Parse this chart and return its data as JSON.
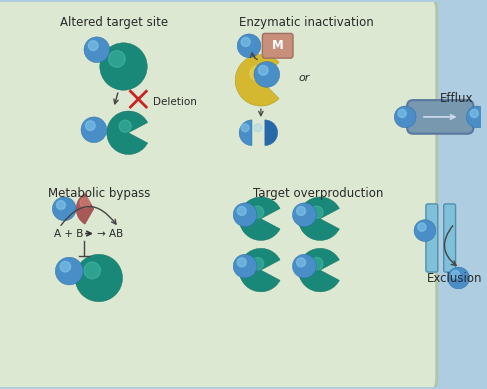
{
  "bg_color": "#aecde0",
  "cell_color": "#dce8d2",
  "cell_edge_color": "#b0c4a8",
  "teal": "#1a8878",
  "teal_dark": "#157060",
  "blue": "#4a8ec8",
  "blue_dark": "#2868a8",
  "yellow": "#d4b830",
  "brown_red": "#a85858",
  "brown_dark": "#884040",
  "gray_blue": "#7898b0",
  "gray_blue_dark": "#5878a0",
  "text_color": "#2a2a2a",
  "labels": {
    "altered": "Altered target site",
    "enzymatic": "Enzymatic inactivation",
    "metabolic": "Metabolic bypass",
    "overproduction": "Target overproduction",
    "deletion": "Deletion",
    "efflux": "Efflux",
    "exclusion": "Exclusion",
    "or": "or",
    "reaction": "A + B",
    "arrow_ab": "→ AB",
    "M_label": "M"
  }
}
